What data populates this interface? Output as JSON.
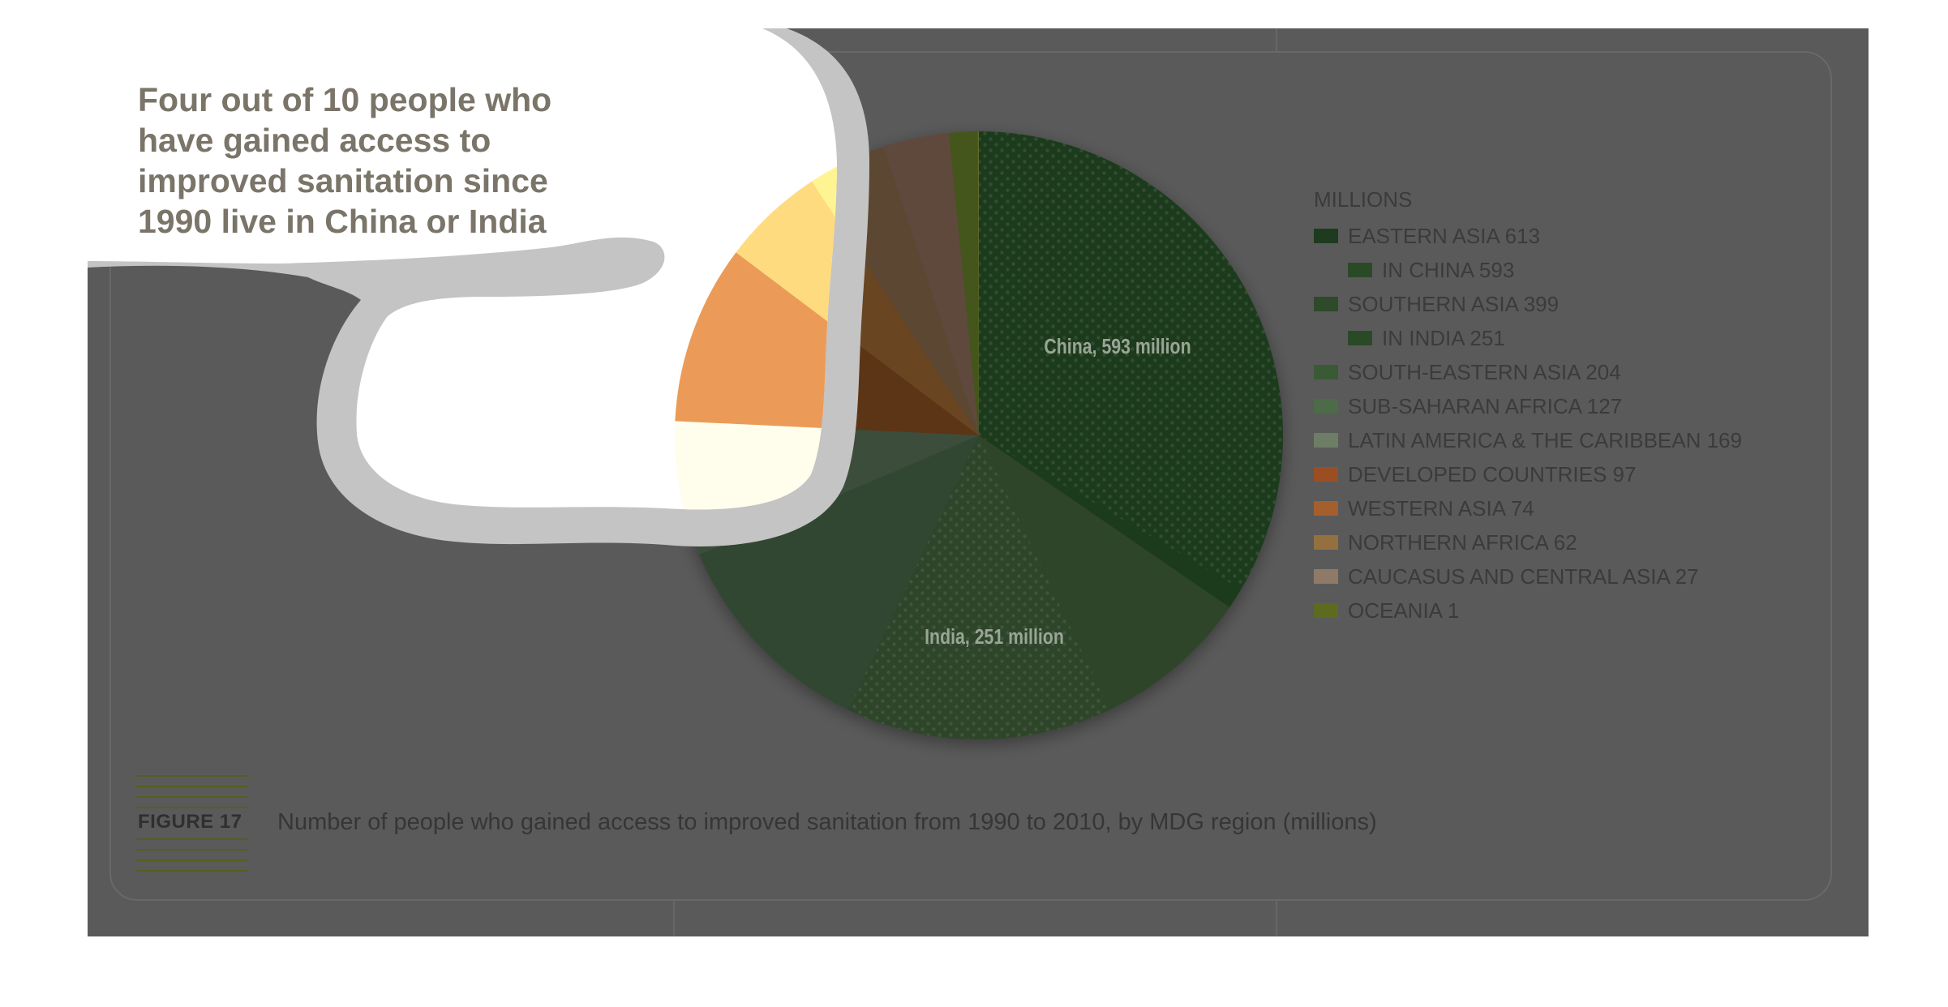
{
  "headline": "Four out of 10 people who have gained access to improved sanitation since 1990 live in China or India",
  "figure": {
    "label": "FIGURE 17",
    "caption": "Number of people who gained access to improved sanitation from 1990 to 2010, by MDG region (millions)"
  },
  "chart_data": {
    "type": "pie",
    "title": "Number of people who gained access to improved sanitation from 1990 to 2010, by MDG region (millions)",
    "unit_label": "MILLIONS",
    "slices": [
      {
        "name": "EASTERN ASIA",
        "value": 613,
        "color": "#1f3b1f",
        "sub": {
          "name": "IN CHINA",
          "value": 593,
          "color": "#1c3a1c",
          "pattern": true
        }
      },
      {
        "name": "SOUTHERN ASIA",
        "value": 399,
        "color": "#2e442a",
        "sub": {
          "name": "IN INDIA",
          "value": 251,
          "color": "#2f4a2c",
          "pattern": true
        }
      },
      {
        "name": "SOUTH-EASTERN ASIA",
        "value": 204,
        "color": "#304630"
      },
      {
        "name": "SUB-SAHARAN AFRICA",
        "value": 127,
        "color": "#3d4e3b"
      },
      {
        "name": "LATIN AMERICA & THE CARIBBEAN",
        "value": 169,
        "color": "#5b3418"
      },
      {
        "name": "DEVELOPED COUNTRIES",
        "value": 97,
        "color": "#6a4520"
      },
      {
        "name": "WESTERN ASIA",
        "value": 74,
        "color": "#5c4630"
      },
      {
        "name": "NORTHERN AFRICA",
        "value": 62,
        "color": "#5f4a3e"
      },
      {
        "name": "CAUCASUS AND CENTRAL ASIA",
        "value": 27,
        "color": "#44561a"
      },
      {
        "name": "OCEANIA",
        "value": 1,
        "color": "#5e6a2c"
      }
    ],
    "annotations": [
      {
        "text": "China, 593 million",
        "slice": "EASTERN ASIA"
      },
      {
        "text": "India, 251 million",
        "slice": "SOUTHERN ASIA"
      }
    ],
    "legend_position": "right"
  },
  "colors": {
    "page_background": "#5a5a5a",
    "highlight_blob": "#ffffff",
    "blob_outline": "#c4c4c4",
    "headline_text": "#7a7469",
    "figure_label_lines": "#52601e"
  }
}
